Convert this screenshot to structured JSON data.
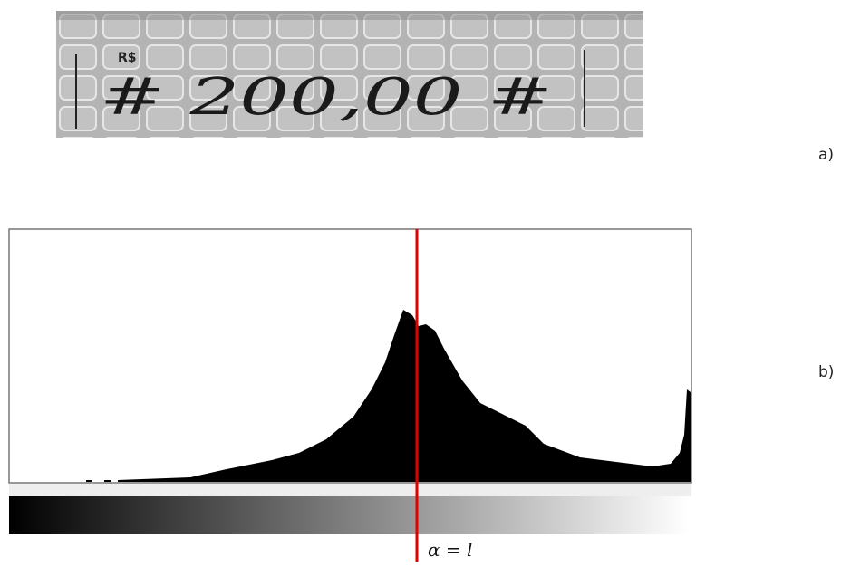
{
  "figure": {
    "panel_a": {
      "label": "a)",
      "currency": "R$",
      "amount": "# 200,00 #"
    },
    "panel_b": {
      "label": "b)",
      "threshold_label": "α = l"
    }
  }
}
